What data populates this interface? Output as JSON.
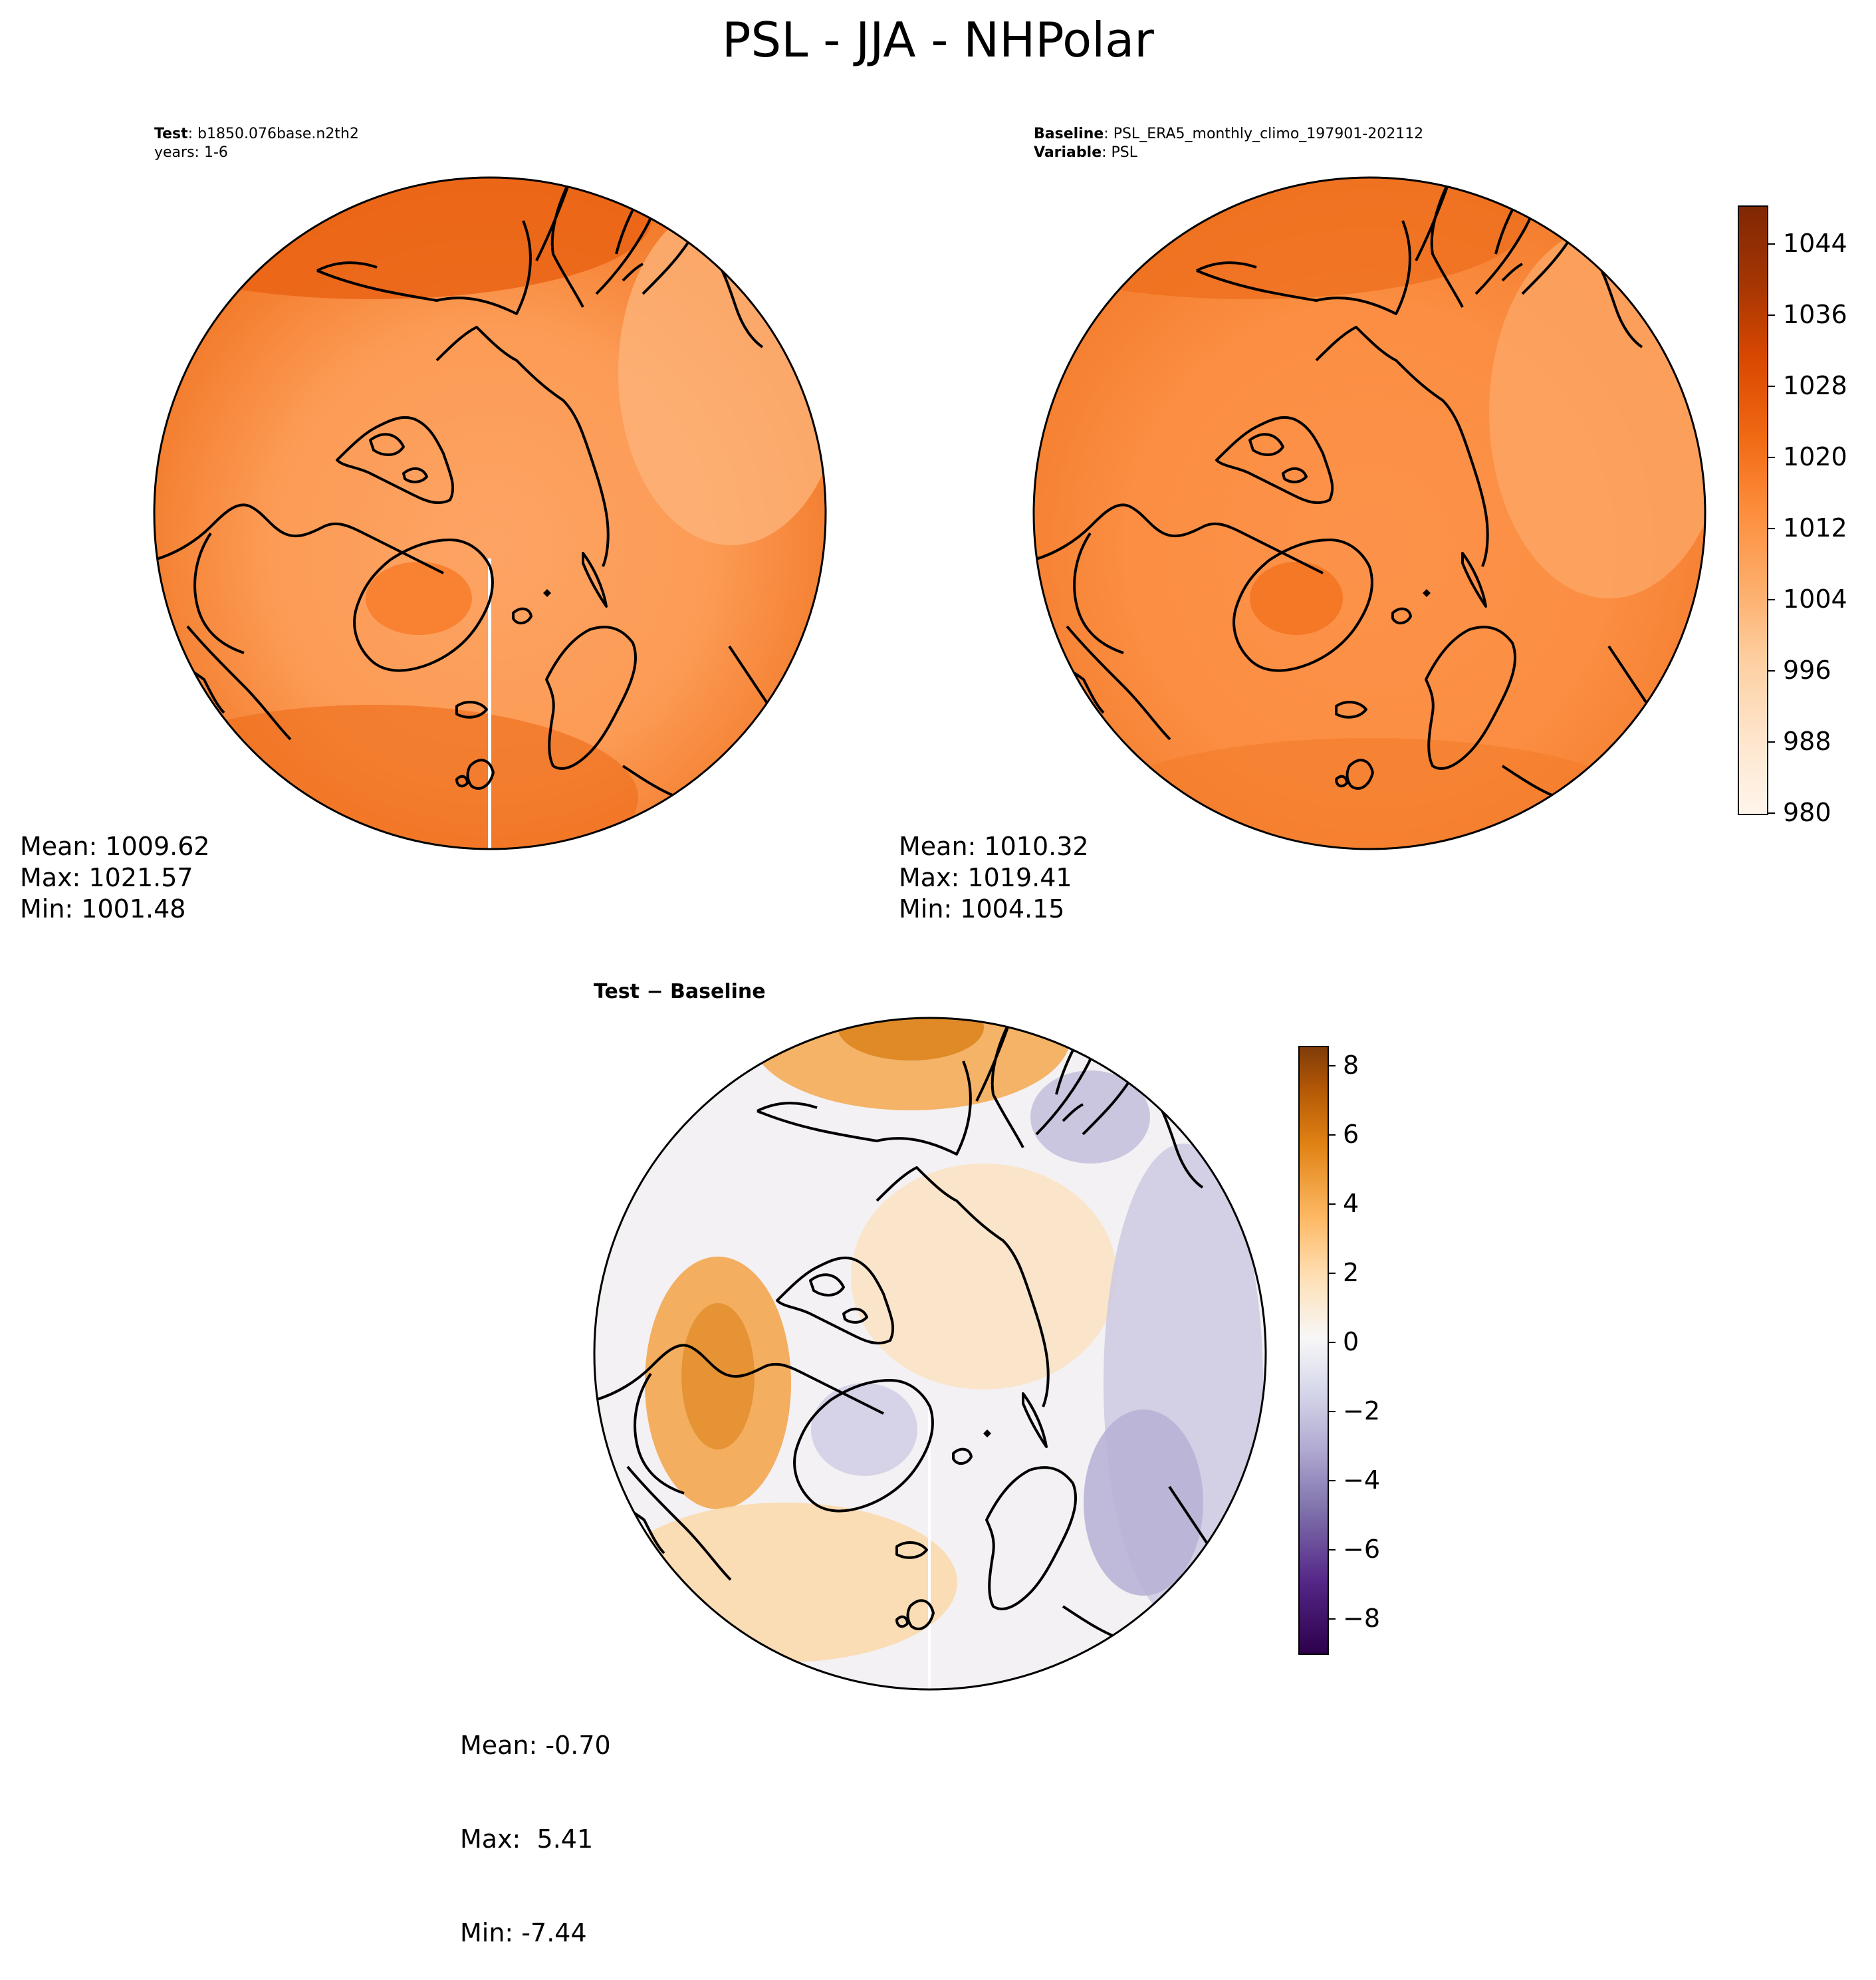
{
  "figure": {
    "title": "PSL - JJA - NHPolar"
  },
  "panels": {
    "test": {
      "line1_label": "Test",
      "line1_value": "b1850.076base.n2th2",
      "line2": "years: 1-6",
      "stats": {
        "mean": "Mean: 1009.62",
        "max": "Max: 1021.57",
        "min": "Min: 1001.48"
      }
    },
    "baseline": {
      "line1_label": "Baseline",
      "line1_value": "PSL_ERA5_monthly_climo_197901-202112",
      "line2_label": "Variable",
      "line2_value": "PSL",
      "stats": {
        "mean": "Mean: 1010.32",
        "max": "Max: 1019.41",
        "min": "Min: 1004.15"
      }
    },
    "difference": {
      "title": "Test − Baseline",
      "stats": {
        "mean": "Mean: -0.70",
        "max": "Max:  5.41",
        "min": "Min: -7.44"
      }
    }
  },
  "colorbars": {
    "main": {
      "ticks": [
        "980",
        "988",
        "996",
        "1004",
        "1012",
        "1020",
        "1028",
        "1036",
        "1044"
      ],
      "range": [
        980,
        1048
      ],
      "colormap": "Oranges",
      "colors": [
        "#fff5eb",
        "#fee6ce",
        "#fdd0a2",
        "#fdae6b",
        "#fd8d3c",
        "#f16913",
        "#d94801",
        "#a63603",
        "#7f2704"
      ]
    },
    "diff": {
      "ticks": [
        "−8",
        "−6",
        "−4",
        "−2",
        "0",
        "2",
        "4",
        "6",
        "8"
      ],
      "range": [
        -9,
        8.5
      ],
      "colormap": "PuOr_r",
      "colors": [
        "#2d004b",
        "#542788",
        "#8073ac",
        "#b2abd2",
        "#d8daeb",
        "#f7f7f7",
        "#fee0b6",
        "#fdb863",
        "#e08214",
        "#b35806",
        "#7f3b08"
      ]
    }
  },
  "chart_data": [
    {
      "type": "heatmap",
      "title": "Test",
      "variable": "PSL",
      "season": "JJA",
      "region": "NHPolar",
      "mean": 1009.62,
      "max": 1021.57,
      "min": 1001.48,
      "colorbar_range": [
        980,
        1048
      ]
    },
    {
      "type": "heatmap",
      "title": "Baseline",
      "variable": "PSL",
      "season": "JJA",
      "region": "NHPolar",
      "mean": 1010.32,
      "max": 1019.41,
      "min": 1004.15,
      "colorbar_range": [
        980,
        1048
      ]
    },
    {
      "type": "heatmap",
      "title": "Test − Baseline",
      "variable": "PSL",
      "mean": -0.7,
      "max": 5.41,
      "min": -7.44,
      "colorbar_range": [
        -9,
        8.5
      ]
    }
  ]
}
